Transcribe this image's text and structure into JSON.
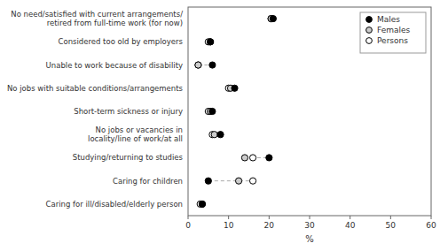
{
  "chart_data": {
    "type": "dot",
    "categories": [
      "No need/satisfied with current arrangements/\nretired from full-time work (for now)",
      "Considered too old by employers",
      "Unable to work because of disability",
      "No jobs with suitable conditions/arrangements",
      "Short-term sickness or injury",
      "No jobs or vacancies in\nlocality/line of work/at all",
      "Studying/returning to studies",
      "Caring for children",
      "Caring for ill/disabled/elderly person"
    ],
    "series": [
      {
        "name": "Males",
        "color": "#000000",
        "values": [
          21.0,
          5.5,
          6.0,
          11.5,
          6.0,
          8.0,
          20.0,
          5.0,
          3.5
        ]
      },
      {
        "name": "Females",
        "color": "#cccccc",
        "values": [
          20.5,
          5.5,
          2.5,
          10.5,
          5.5,
          6.5,
          14.0,
          12.5,
          3.5
        ]
      },
      {
        "name": "Persons",
        "color": "#ffffff",
        "values": [
          20.5,
          5.0,
          2.5,
          10.0,
          5.0,
          6.0,
          16.0,
          16.0,
          3.0
        ]
      }
    ],
    "xlim": [
      0,
      60
    ],
    "xticks": [
      0,
      10,
      20,
      30,
      40,
      50,
      60
    ],
    "xlabel": "%",
    "marker": "circle",
    "legend": "upper right",
    "grid": false
  }
}
